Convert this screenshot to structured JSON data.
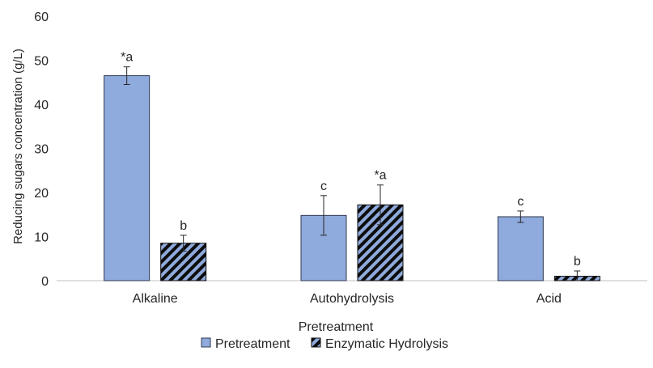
{
  "chart_data": {
    "type": "bar",
    "xlabel": "Pretreatment",
    "ylabel": "Reducing sugars concentration (g/L)",
    "ylim": [
      0,
      60
    ],
    "yticks": [
      0,
      10,
      20,
      30,
      40,
      50,
      60
    ],
    "categories": [
      "Alkaline",
      "Autohydrolysis",
      "Acid"
    ],
    "legend_position": "bottom",
    "grid": false,
    "series": [
      {
        "name": "Pretreatment",
        "pattern": "solid",
        "color": "#8faadc",
        "values": [
          46.5,
          14.8,
          14.5
        ],
        "errors": [
          2.0,
          4.5,
          1.3
        ],
        "annotations": [
          "*a",
          "c",
          "c"
        ]
      },
      {
        "name": "Enzymatic Hydrolysis",
        "pattern": "diagonal-stripes",
        "color": "#8faadc",
        "stripe_color": "#0d0d0d",
        "values": [
          8.5,
          17.2,
          1.0
        ],
        "errors": [
          1.8,
          4.5,
          1.2
        ],
        "annotations": [
          "b",
          "*a",
          "b"
        ]
      }
    ]
  }
}
